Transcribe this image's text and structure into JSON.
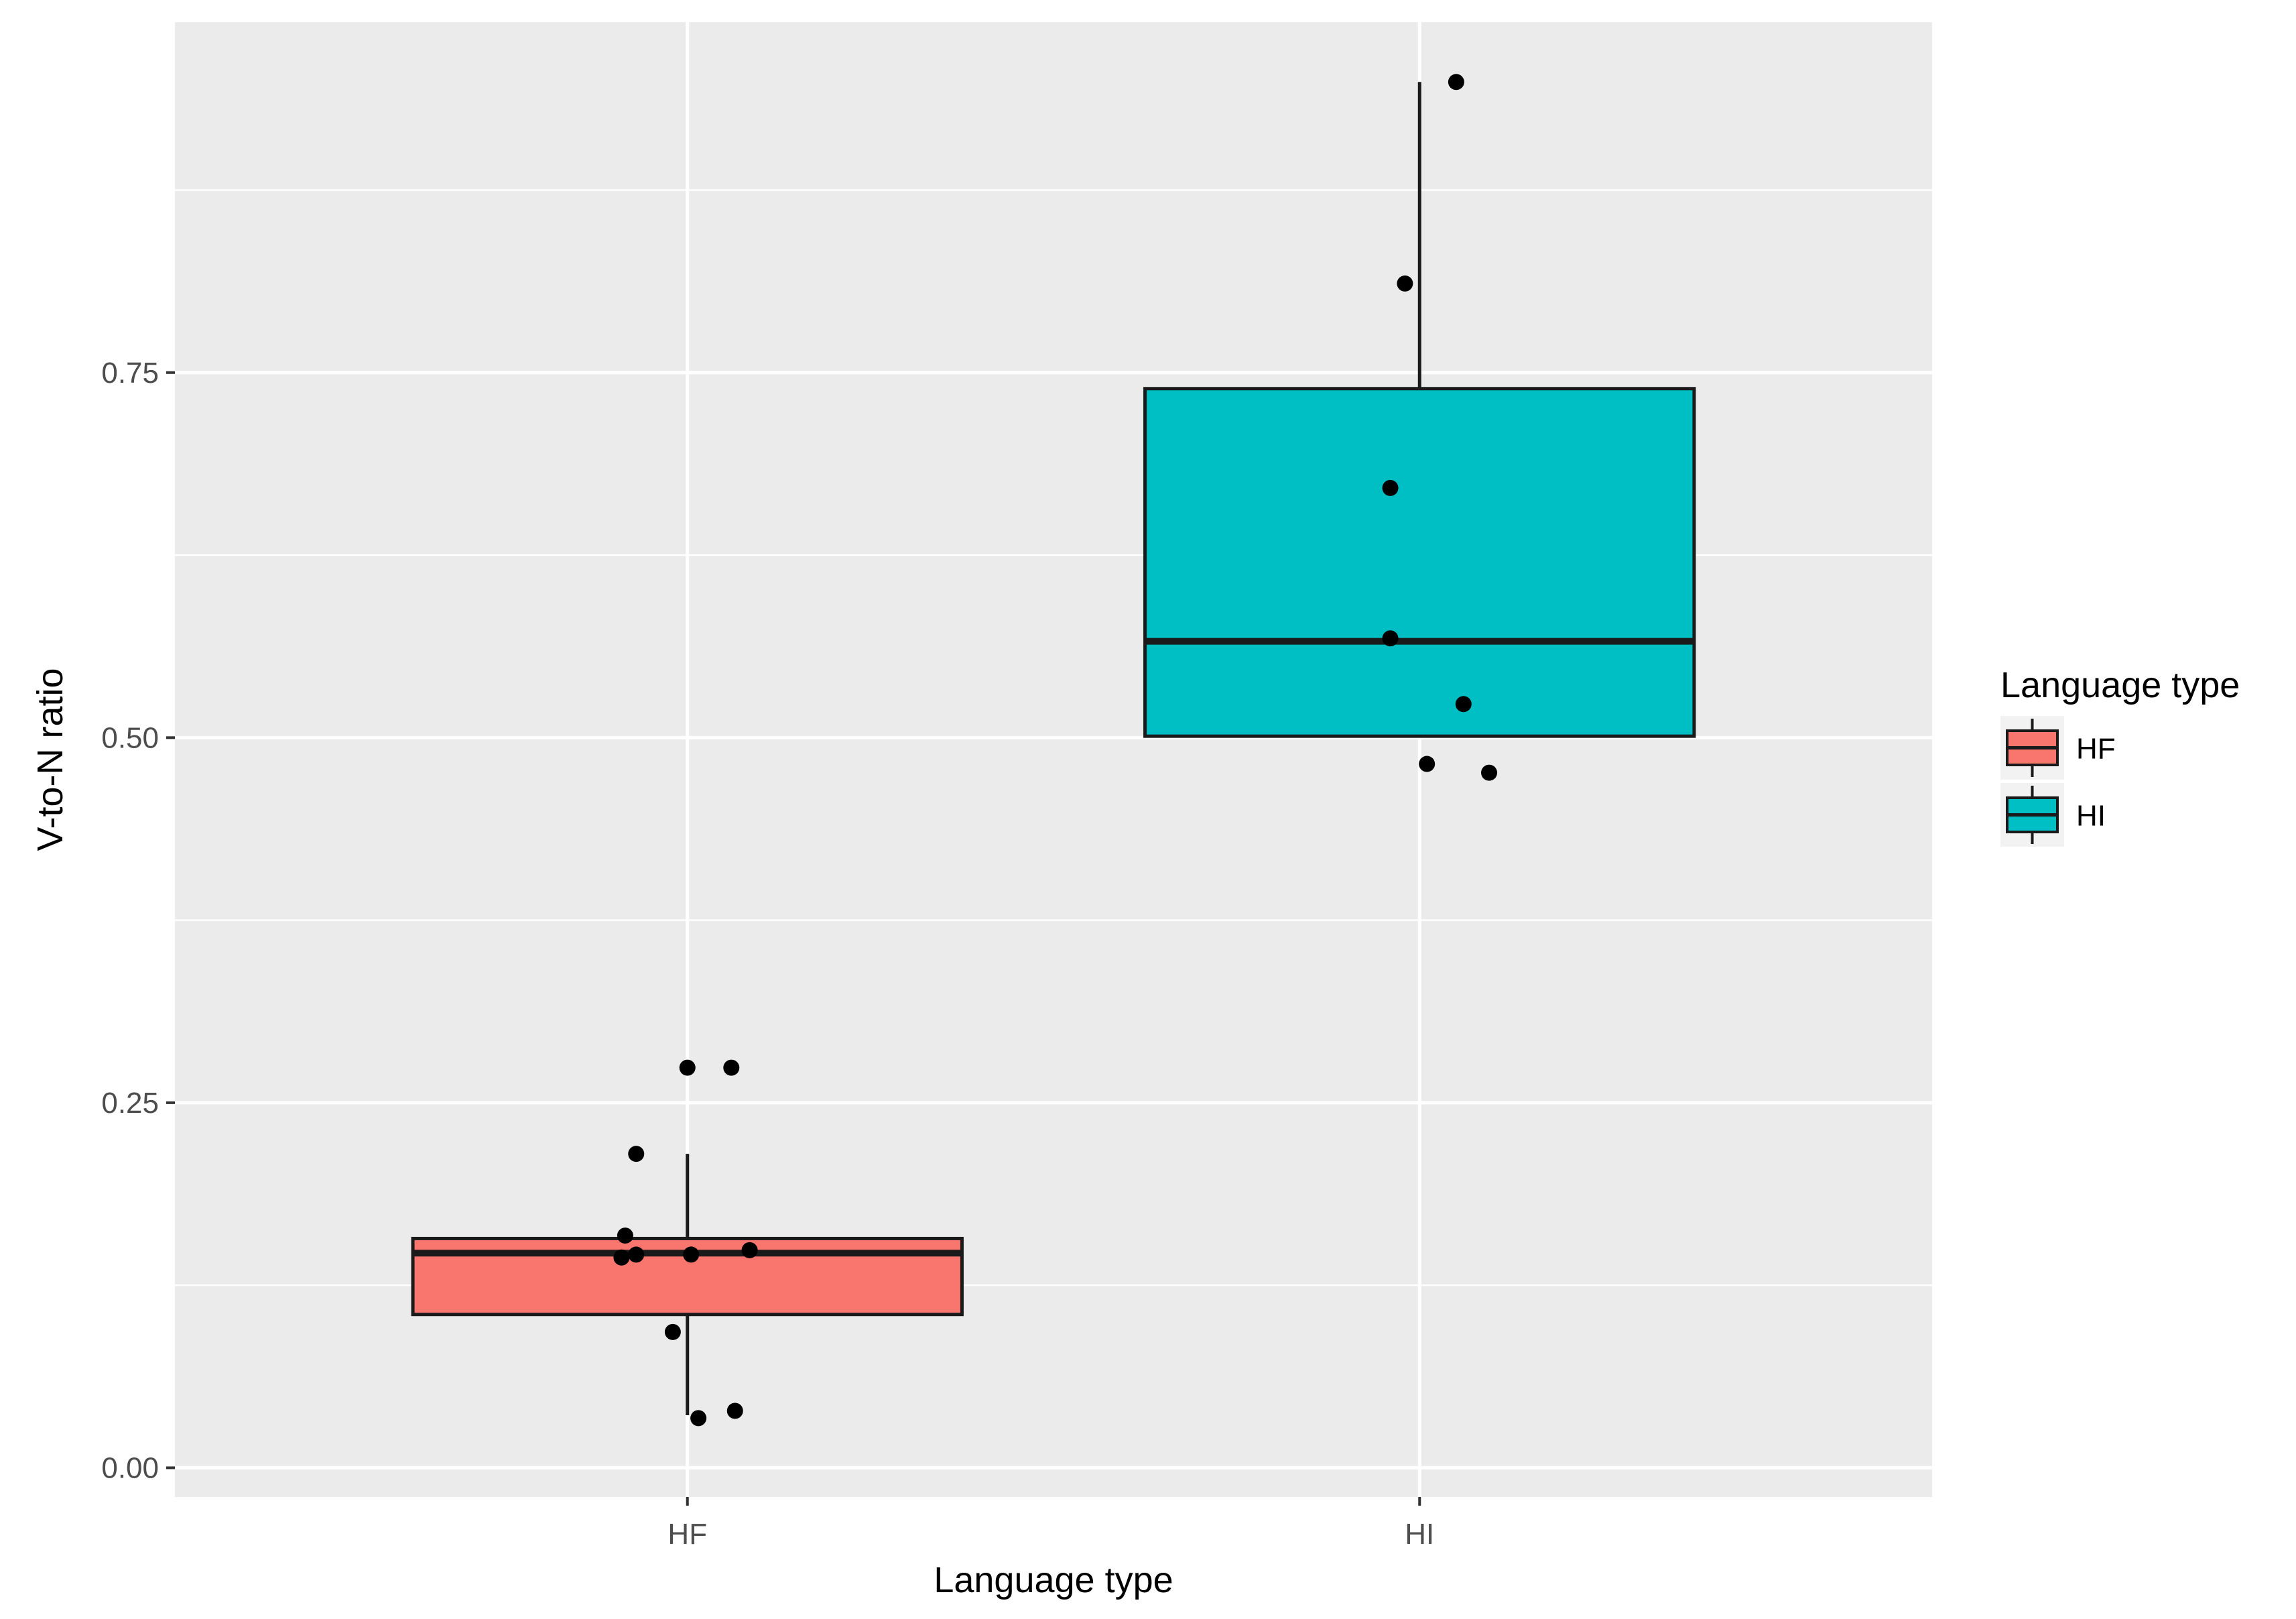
{
  "chart_data": {
    "type": "box",
    "xlabel": "Language type",
    "ylabel": "V-to-N ratio",
    "categories": [
      "HF",
      "HI"
    ],
    "ylim": [
      -0.02,
      0.99
    ],
    "y_ticks": [
      0.0,
      0.25,
      0.5,
      0.75
    ],
    "y_tick_labels": [
      "0.00",
      "0.25",
      "0.50",
      "0.75"
    ],
    "grid": true,
    "legend": {
      "title": "Language type",
      "position": "right",
      "entries": [
        "HF",
        "HI"
      ]
    },
    "colors": {
      "HF": "#F8766D",
      "HI": "#00BFC4"
    },
    "series": [
      {
        "name": "HF",
        "box": {
          "lower_whisker": 0.036,
          "q1": 0.105,
          "median": 0.147,
          "q3": 0.157,
          "upper_whisker": 0.215
        },
        "points": [
          {
            "x": 0.0,
            "y": 0.274
          },
          {
            "x": 0.06,
            "y": 0.274
          },
          {
            "x": -0.07,
            "y": 0.215
          },
          {
            "x": -0.085,
            "y": 0.159
          },
          {
            "x": -0.09,
            "y": 0.144
          },
          {
            "x": -0.07,
            "y": 0.146
          },
          {
            "x": 0.005,
            "y": 0.146
          },
          {
            "x": 0.085,
            "y": 0.149
          },
          {
            "x": -0.02,
            "y": 0.093
          },
          {
            "x": 0.065,
            "y": 0.039
          },
          {
            "x": 0.015,
            "y": 0.034
          }
        ]
      },
      {
        "name": "HI",
        "box": {
          "lower_whisker": 0.5,
          "q1": 0.501,
          "median": 0.566,
          "q3": 0.739,
          "upper_whisker": 0.949
        },
        "points": [
          {
            "x": 0.05,
            "y": 0.949
          },
          {
            "x": -0.02,
            "y": 0.811
          },
          {
            "x": -0.04,
            "y": 0.671
          },
          {
            "x": -0.04,
            "y": 0.568
          },
          {
            "x": 0.06,
            "y": 0.523
          },
          {
            "x": 0.01,
            "y": 0.482
          },
          {
            "x": 0.095,
            "y": 0.476
          }
        ]
      }
    ]
  }
}
